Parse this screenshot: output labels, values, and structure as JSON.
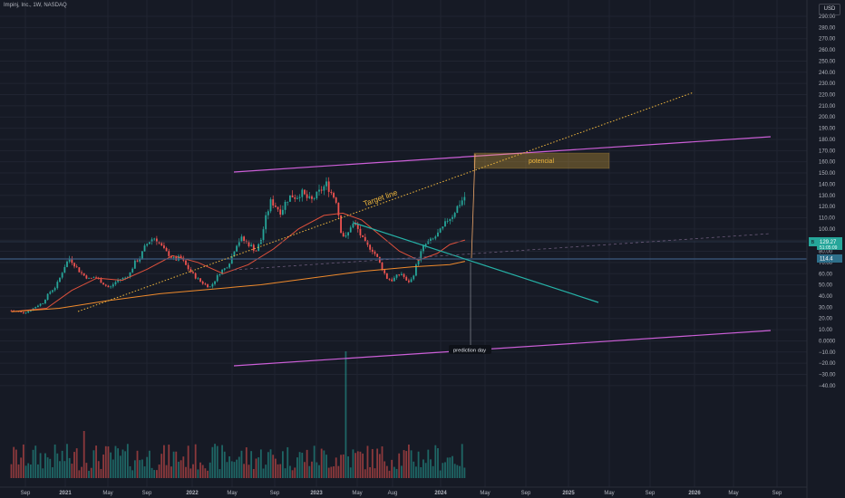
{
  "header": {
    "title": "Impinj, Inc., 1W, NASDAQ",
    "currency": "USD"
  },
  "badges": {
    "price_tag": "129.27",
    "price_sub": "51:05:09",
    "line_tag": "114.4",
    "line_mark": "B"
  },
  "colors": {
    "background": "#161a25",
    "grid": "#202431",
    "up": "#26a69a",
    "down": "#ef5350",
    "channel": "#cc5fd8",
    "trendline": "#26b3a8",
    "target": "#f0b73d",
    "ma_fast": "#e0513c",
    "ma_slow": "#ef8a2c",
    "hline": "#3d5a80",
    "projection": "#f0a86a"
  },
  "chart_data": {
    "type": "candlestick",
    "title": "Impinj, Inc., 1W, NASDAQ",
    "x_axis": [
      "Sep",
      "2021",
      "May",
      "Sep",
      "2022",
      "May",
      "Sep",
      "2023",
      "May",
      "Aug",
      "2024",
      "May",
      "Sep",
      "2025",
      "May",
      "Sep",
      "2026",
      "May",
      "Sep"
    ],
    "y_axis": {
      "scale": "linear",
      "upper_range": [
        40,
        290
      ],
      "ticks": [
        "290.00",
        "280.00",
        "270.00",
        "260.00",
        "250.00",
        "240.00",
        "230.00",
        "220.00",
        "210.00",
        "200.00",
        "190.00",
        "180.00",
        "170.00",
        "160.00",
        "150.00",
        "140.00",
        "130.00",
        "120.00",
        "110.00",
        "100.00",
        "90.00",
        "80.00",
        "70.00",
        "60.00",
        "50.00",
        "40.00",
        "30.00",
        "20.00",
        "10.00",
        "0.0000",
        "−10.00",
        "−20.00",
        "−30.00",
        "−40.00"
      ]
    },
    "series": [
      {
        "name": "price",
        "points": [
          [
            2020.62,
            27
          ],
          [
            2020.67,
            26
          ],
          [
            2020.72,
            25
          ],
          [
            2020.77,
            27
          ],
          [
            2020.82,
            31
          ],
          [
            2020.87,
            34
          ],
          [
            2020.92,
            43
          ],
          [
            2020.97,
            48
          ],
          [
            2021.0,
            55
          ],
          [
            2021.04,
            66
          ],
          [
            2021.08,
            74
          ],
          [
            2021.12,
            68
          ],
          [
            2021.16,
            62
          ],
          [
            2021.2,
            58
          ],
          [
            2021.24,
            55
          ],
          [
            2021.28,
            57
          ],
          [
            2021.32,
            54
          ],
          [
            2021.36,
            50
          ],
          [
            2021.4,
            47
          ],
          [
            2021.44,
            52
          ],
          [
            2021.48,
            55
          ],
          [
            2021.52,
            56
          ],
          [
            2021.56,
            60
          ],
          [
            2021.6,
            70
          ],
          [
            2021.64,
            74
          ],
          [
            2021.68,
            84
          ],
          [
            2021.72,
            90
          ],
          [
            2021.76,
            92
          ],
          [
            2021.8,
            86
          ],
          [
            2021.84,
            80
          ],
          [
            2021.88,
            76
          ],
          [
            2021.92,
            72
          ],
          [
            2021.96,
            75
          ],
          [
            2022.0,
            68
          ],
          [
            2022.04,
            62
          ],
          [
            2022.08,
            57
          ],
          [
            2022.12,
            53
          ],
          [
            2022.16,
            50
          ],
          [
            2022.2,
            48
          ],
          [
            2022.24,
            55
          ],
          [
            2022.28,
            62
          ],
          [
            2022.32,
            65
          ],
          [
            2022.36,
            72
          ],
          [
            2022.4,
            85
          ],
          [
            2022.44,
            92
          ],
          [
            2022.48,
            88
          ],
          [
            2022.52,
            85
          ],
          [
            2022.56,
            80
          ],
          [
            2022.6,
            90
          ],
          [
            2022.64,
            110
          ],
          [
            2022.68,
            125
          ],
          [
            2022.72,
            120
          ],
          [
            2022.76,
            115
          ],
          [
            2022.8,
            125
          ],
          [
            2022.84,
            130
          ],
          [
            2022.88,
            128
          ],
          [
            2022.92,
            133
          ],
          [
            2022.96,
            128
          ],
          [
            2023.0,
            125
          ],
          [
            2023.04,
            130
          ],
          [
            2023.08,
            135
          ],
          [
            2023.12,
            140
          ],
          [
            2023.16,
            132
          ],
          [
            2023.2,
            125
          ],
          [
            2023.24,
            95
          ],
          [
            2023.28,
            92
          ],
          [
            2023.32,
            105
          ],
          [
            2023.36,
            102
          ],
          [
            2023.4,
            92
          ],
          [
            2023.44,
            85
          ],
          [
            2023.48,
            82
          ],
          [
            2023.52,
            75
          ],
          [
            2023.56,
            65
          ],
          [
            2023.6,
            56
          ],
          [
            2023.64,
            54
          ],
          [
            2023.68,
            58
          ],
          [
            2023.72,
            60
          ],
          [
            2023.76,
            52
          ],
          [
            2023.8,
            55
          ],
          [
            2023.84,
            70
          ],
          [
            2023.88,
            82
          ],
          [
            2023.92,
            88
          ],
          [
            2023.96,
            90
          ],
          [
            2024.0,
            95
          ],
          [
            2024.04,
            100
          ],
          [
            2024.08,
            108
          ],
          [
            2024.12,
            112
          ],
          [
            2024.16,
            120
          ],
          [
            2024.2,
            126
          ],
          [
            2024.22,
            129.27
          ]
        ]
      },
      {
        "name": "moving_average_fast",
        "points": [
          [
            2020.62,
            26
          ],
          [
            2020.9,
            29
          ],
          [
            2021.1,
            45
          ],
          [
            2021.3,
            56
          ],
          [
            2021.5,
            54
          ],
          [
            2021.7,
            64
          ],
          [
            2021.9,
            76
          ],
          [
            2022.1,
            70
          ],
          [
            2022.3,
            60
          ],
          [
            2022.5,
            68
          ],
          [
            2022.7,
            82
          ],
          [
            2022.9,
            100
          ],
          [
            2023.1,
            112
          ],
          [
            2023.25,
            114
          ],
          [
            2023.4,
            108
          ],
          [
            2023.55,
            94
          ],
          [
            2023.7,
            80
          ],
          [
            2023.85,
            72
          ],
          [
            2024.0,
            78
          ],
          [
            2024.1,
            86
          ],
          [
            2024.22,
            90
          ]
        ]
      },
      {
        "name": "moving_average_slow",
        "points": [
          [
            2020.62,
            26
          ],
          [
            2021.0,
            29
          ],
          [
            2021.4,
            36
          ],
          [
            2021.8,
            42
          ],
          [
            2022.2,
            46
          ],
          [
            2022.6,
            50
          ],
          [
            2023.0,
            56
          ],
          [
            2023.4,
            62
          ],
          [
            2023.8,
            66
          ],
          [
            2024.1,
            68
          ],
          [
            2024.22,
            71
          ]
        ]
      },
      {
        "name": "volume_histogram",
        "points": [
          [
            2020.7,
            -30
          ],
          [
            2020.9,
            -25
          ],
          [
            2021.05,
            -20
          ],
          [
            2021.3,
            -27
          ],
          [
            2021.6,
            -24
          ],
          [
            2021.8,
            -20
          ],
          [
            2022.0,
            -30
          ],
          [
            2022.2,
            -32
          ],
          [
            2022.4,
            -25
          ],
          [
            2022.6,
            -28
          ],
          [
            2022.8,
            -20
          ],
          [
            2023.0,
            -24
          ],
          [
            2023.1,
            -27
          ],
          [
            2023.27,
            40
          ],
          [
            2023.5,
            -10
          ],
          [
            2023.6,
            -22
          ],
          [
            2023.8,
            -15
          ],
          [
            2023.95,
            -25
          ],
          [
            2024.1,
            -22
          ],
          [
            2024.22,
            -30
          ]
        ]
      }
    ],
    "annotations": [
      {
        "text": "Target line"
      },
      {
        "text": "potencial"
      },
      {
        "text": "prediction day"
      }
    ]
  }
}
